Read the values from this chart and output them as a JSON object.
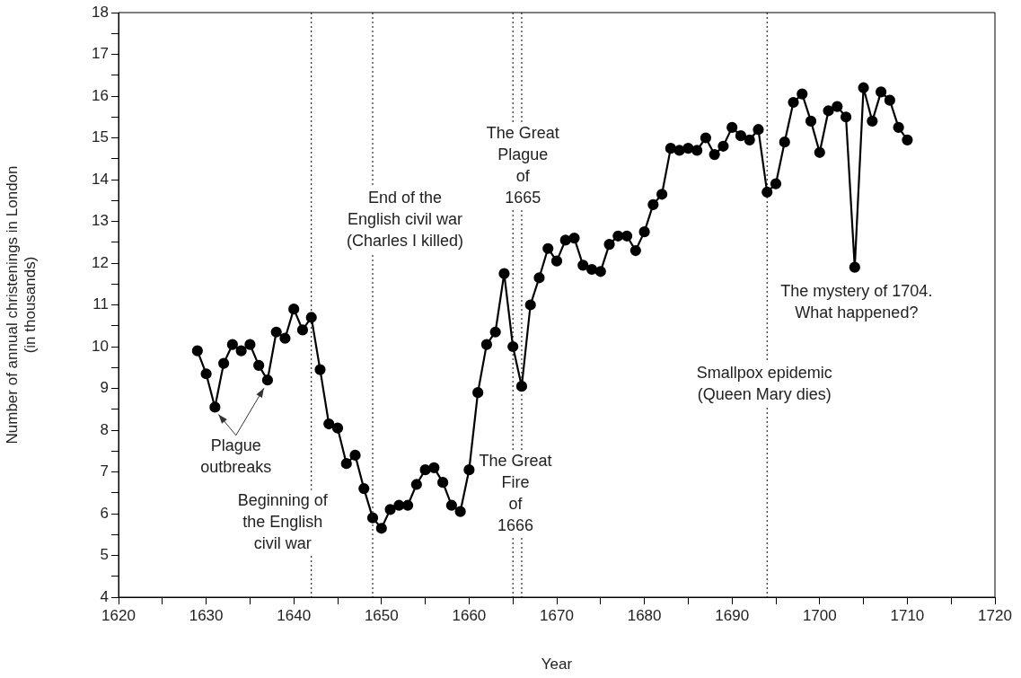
{
  "chart_data": {
    "type": "line",
    "xlabel": "Year",
    "ylabel": "Number of annual christenings in London\n(in thousands)",
    "x": [
      1629,
      1630,
      1631,
      1632,
      1633,
      1634,
      1635,
      1636,
      1637,
      1638,
      1639,
      1640,
      1641,
      1642,
      1643,
      1644,
      1645,
      1646,
      1647,
      1648,
      1649,
      1650,
      1651,
      1652,
      1653,
      1654,
      1655,
      1656,
      1657,
      1658,
      1659,
      1660,
      1661,
      1662,
      1663,
      1664,
      1665,
      1666,
      1667,
      1668,
      1669,
      1670,
      1671,
      1672,
      1673,
      1674,
      1675,
      1676,
      1677,
      1678,
      1679,
      1680,
      1681,
      1682,
      1683,
      1684,
      1685,
      1686,
      1687,
      1688,
      1689,
      1690,
      1691,
      1692,
      1693,
      1694,
      1695,
      1696,
      1697,
      1698,
      1699,
      1700,
      1701,
      1702,
      1703,
      1704,
      1705,
      1706,
      1707,
      1708,
      1709,
      1710
    ],
    "series": [
      {
        "color": "#000000",
        "values": [
          9.9,
          9.35,
          8.55,
          9.6,
          10.05,
          9.9,
          10.05,
          9.55,
          9.2,
          10.35,
          10.2,
          10.9,
          10.4,
          10.7,
          9.45,
          8.15,
          8.05,
          7.2,
          7.4,
          6.6,
          5.9,
          5.65,
          6.1,
          6.2,
          6.2,
          6.7,
          7.05,
          7.1,
          6.75,
          6.2,
          6.05,
          7.05,
          8.9,
          10.05,
          10.35,
          11.75,
          10.0,
          9.05,
          11.0,
          11.65,
          12.35,
          12.05,
          12.55,
          12.6,
          11.95,
          11.85,
          11.8,
          12.45,
          12.65,
          12.65,
          12.3,
          12.75,
          13.4,
          13.65,
          14.75,
          14.7,
          14.75,
          14.7,
          15.0,
          14.6,
          14.8,
          15.25,
          15.05,
          14.95,
          15.2,
          13.7,
          13.9,
          14.9,
          15.85,
          16.05,
          15.4,
          14.65,
          15.65,
          15.75,
          15.5,
          11.9,
          16.2,
          15.4,
          16.1,
          15.9,
          15.25,
          14.95
        ]
      }
    ],
    "xlim": [
      1620,
      1720
    ],
    "xticks": [
      1620,
      {
        "value": 1625,
        "label": null
      },
      1630,
      {
        "value": 1635,
        "label": null
      },
      1640,
      {
        "value": 1645,
        "label": null
      },
      1650,
      {
        "value": 1655,
        "label": null
      },
      1660,
      {
        "value": 1665,
        "label": null
      },
      1670,
      {
        "value": 1675,
        "label": null
      },
      1680,
      {
        "value": 1685,
        "label": null
      },
      1690,
      {
        "value": 1695,
        "label": null
      },
      1700,
      {
        "value": 1705,
        "label": null
      },
      1710,
      {
        "value": 1715,
        "label": null
      },
      1720
    ],
    "ylim": [
      4,
      18
    ],
    "yticks": [
      4,
      {
        "value": 4.5,
        "label": null
      },
      5,
      {
        "value": 5.5,
        "label": null
      },
      6,
      {
        "value": 6.5,
        "label": null
      },
      7,
      {
        "value": 7.5,
        "label": null
      },
      8,
      {
        "value": 8.5,
        "label": null
      },
      9,
      {
        "value": 9.5,
        "label": null
      },
      10,
      {
        "value": 10.5,
        "label": null
      },
      11,
      {
        "value": 11.5,
        "label": null
      },
      12,
      {
        "value": 12.5,
        "label": null
      },
      13,
      {
        "value": 13.5,
        "label": null
      },
      14,
      {
        "value": 14.5,
        "label": null
      },
      15,
      {
        "value": 15.5,
        "label": null
      },
      16,
      {
        "value": 16.5,
        "label": null
      },
      17,
      {
        "value": 17.5,
        "label": null
      },
      18
    ],
    "grid": false,
    "legend": false,
    "marker": "circle",
    "line_style": "solid",
    "ref_lines": [
      {
        "axis": "x",
        "value": 1642,
        "line_style": "dotted",
        "label": "Beginning of\nthe English\ncivil war"
      },
      {
        "axis": "x",
        "value": 1649,
        "line_style": "dotted",
        "label": "End of the\nEnglish civil war\n(Charles I killed)"
      },
      {
        "axis": "x",
        "value": 1665,
        "line_style": "dotted",
        "label": "The Great\nPlague\nof\n1665"
      },
      {
        "axis": "x",
        "value": 1666,
        "line_style": "dotted",
        "label": "The Great\nFire\nof\n1666"
      },
      {
        "axis": "x",
        "value": 1694,
        "line_style": "dotted",
        "label": "Smallpox epidemic\n(Queen Mary dies)"
      }
    ],
    "annotations": [
      {
        "text": "Plague\noutbreaks",
        "x": 1631,
        "y": 8.55
      },
      {
        "text": "The mystery of 1704.\nWhat happened?",
        "x": 1704,
        "y": 11.9
      }
    ]
  }
}
